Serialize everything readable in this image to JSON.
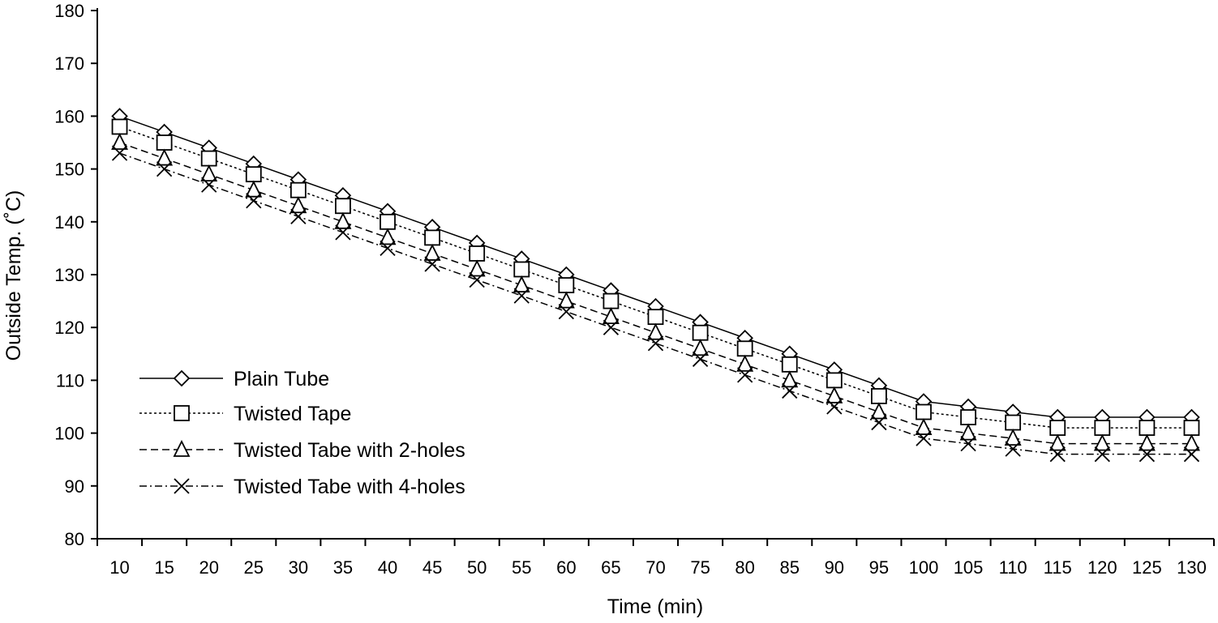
{
  "chart_data": {
    "type": "line",
    "title": "",
    "xlabel": "Time (min)",
    "ylabel": "Outside Temp. (˚C)",
    "ylim": [
      80,
      180
    ],
    "yticks": [
      "80",
      "90",
      "100",
      "110",
      "120",
      "130",
      "140",
      "150",
      "160",
      "170",
      "180"
    ],
    "categories": [
      "10",
      "15",
      "20",
      "25",
      "30",
      "35",
      "40",
      "45",
      "50",
      "55",
      "60",
      "65",
      "70",
      "75",
      "80",
      "85",
      "90",
      "95",
      "100",
      "105",
      "110",
      "115",
      "120",
      "125",
      "130"
    ],
    "grid": false,
    "legend_position": "bottom-left",
    "series": [
      {
        "name": "Plain Tube",
        "marker": "diamond",
        "line": "solid",
        "values": [
          160,
          157,
          154,
          151,
          148,
          145,
          142,
          139,
          136,
          133,
          130,
          127,
          124,
          121,
          118,
          115,
          112,
          109,
          106,
          105,
          104,
          103,
          103,
          103,
          103
        ]
      },
      {
        "name": "Twisted Tape",
        "marker": "square",
        "line": "dotted",
        "values": [
          158,
          155,
          152,
          149,
          146,
          143,
          140,
          137,
          134,
          131,
          128,
          125,
          122,
          119,
          116,
          113,
          110,
          107,
          104,
          103,
          102,
          101,
          101,
          101,
          101
        ]
      },
      {
        "name": "Twisted Tabe with 2-holes",
        "marker": "triangle",
        "line": "dashed",
        "values": [
          155,
          152,
          149,
          146,
          143,
          140,
          137,
          134,
          131,
          128,
          125,
          122,
          119,
          116,
          113,
          110,
          107,
          104,
          101,
          100,
          99,
          98,
          98,
          98,
          98
        ]
      },
      {
        "name": "Twisted Tabe with 4-holes",
        "marker": "x",
        "line": "dashdot",
        "values": [
          153,
          150,
          147,
          144,
          141,
          138,
          135,
          132,
          129,
          126,
          123,
          120,
          117,
          114,
          111,
          108,
          105,
          102,
          99,
          98,
          97,
          96,
          96,
          96,
          96
        ]
      }
    ]
  }
}
